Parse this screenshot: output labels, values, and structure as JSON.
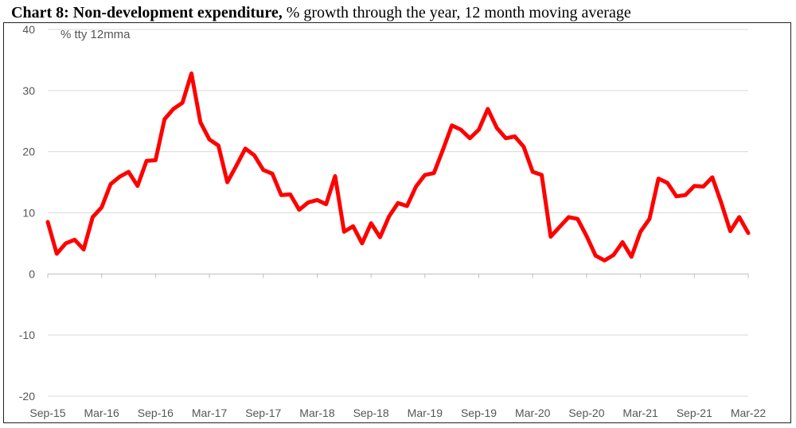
{
  "title_bold": "Chart 8: Non-development expenditure,",
  "title_rest": " % growth through the year, 12 month moving average",
  "chart_data": {
    "type": "line",
    "unit_label": "% tty 12mma",
    "ylim": [
      -20,
      40
    ],
    "yticks": [
      40,
      30,
      20,
      10,
      0,
      -10,
      -20
    ],
    "grid": true,
    "line_color": "#ff0000",
    "xticks": [
      "Sep-15",
      "Mar-16",
      "Sep-16",
      "Mar-17",
      "Sep-17",
      "Mar-18",
      "Sep-18",
      "Mar-19",
      "Sep-19",
      "Mar-20",
      "Sep-20",
      "Mar-21",
      "Sep-21",
      "Mar-22"
    ],
    "x": [
      "Sep-15",
      "Oct-15",
      "Nov-15",
      "Dec-15",
      "Jan-16",
      "Feb-16",
      "Mar-16",
      "Apr-16",
      "May-16",
      "Jun-16",
      "Jul-16",
      "Aug-16",
      "Sep-16",
      "Oct-16",
      "Nov-16",
      "Dec-16",
      "Jan-17",
      "Feb-17",
      "Mar-17",
      "Apr-17",
      "May-17",
      "Jun-17",
      "Jul-17",
      "Aug-17",
      "Sep-17",
      "Oct-17",
      "Nov-17",
      "Dec-17",
      "Jan-18",
      "Feb-18",
      "Mar-18",
      "Apr-18",
      "May-18",
      "Jun-18",
      "Jul-18",
      "Aug-18",
      "Sep-18",
      "Oct-18",
      "Nov-18",
      "Dec-18",
      "Jan-19",
      "Feb-19",
      "Mar-19",
      "Apr-19",
      "May-19",
      "Jun-19",
      "Jul-19",
      "Aug-19",
      "Sep-19",
      "Oct-19",
      "Nov-19",
      "Dec-19",
      "Jan-20",
      "Feb-20",
      "Mar-20",
      "Apr-20",
      "May-20",
      "Jun-20",
      "Jul-20",
      "Aug-20",
      "Sep-20",
      "Oct-20",
      "Nov-20",
      "Dec-20",
      "Jan-21",
      "Feb-21",
      "Mar-21",
      "Apr-21",
      "May-21",
      "Jun-21",
      "Jul-21",
      "Aug-21",
      "Sep-21",
      "Oct-21",
      "Nov-21",
      "Dec-21",
      "Jan-22",
      "Feb-22",
      "Mar-22"
    ],
    "series": [
      {
        "values": [
          8.5,
          3.3,
          5.0,
          5.6,
          4.0,
          9.3,
          10.9,
          14.7,
          15.9,
          16.7,
          14.4,
          18.5,
          18.6,
          25.3,
          27.0,
          28.0,
          32.8,
          24.8,
          22.0,
          21.0,
          15.0,
          17.7,
          20.5,
          19.4,
          17.0,
          16.4,
          12.9,
          13.0,
          10.5,
          11.7,
          12.1,
          11.4,
          16.0,
          6.9,
          7.8,
          5.0,
          8.3,
          6.0,
          9.4,
          11.6,
          11.1,
          14.3,
          16.2,
          16.5,
          20.3,
          24.3,
          23.6,
          22.2,
          23.6,
          27.0,
          23.9,
          22.2,
          22.5,
          20.8,
          16.7,
          16.2,
          6.1,
          7.7,
          9.3,
          9.0,
          6.2,
          3.0,
          2.2,
          3.1,
          5.2,
          2.8,
          6.9,
          9.0,
          15.6,
          14.9,
          12.7,
          12.9,
          14.4,
          14.3,
          15.8,
          11.6,
          7.0,
          9.3,
          6.7
        ]
      }
    ]
  }
}
